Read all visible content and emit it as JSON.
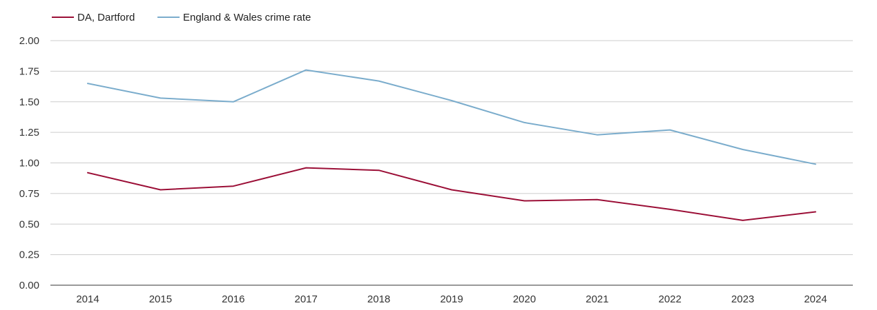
{
  "chart_data": {
    "type": "line",
    "title": "",
    "xlabel": "",
    "ylabel": "",
    "x": [
      "2014",
      "2015",
      "2016",
      "2017",
      "2018",
      "2019",
      "2020",
      "2021",
      "2022",
      "2023",
      "2024"
    ],
    "ylim": [
      0,
      2
    ],
    "yticks": [
      "0.00",
      "0.25",
      "0.50",
      "0.75",
      "1.00",
      "1.25",
      "1.50",
      "1.75",
      "2.00"
    ],
    "grid": true,
    "legend_position": "top-left",
    "series": [
      {
        "name": "DA, Dartford",
        "color": "#9b0e36",
        "values": [
          0.92,
          0.78,
          0.81,
          0.96,
          0.94,
          0.78,
          0.69,
          0.7,
          0.62,
          0.53,
          0.6
        ]
      },
      {
        "name": "England & Wales crime rate",
        "color": "#7aaccc",
        "values": [
          1.65,
          1.53,
          1.5,
          1.76,
          1.67,
          1.51,
          1.33,
          1.23,
          1.27,
          1.11,
          0.99
        ]
      }
    ]
  }
}
